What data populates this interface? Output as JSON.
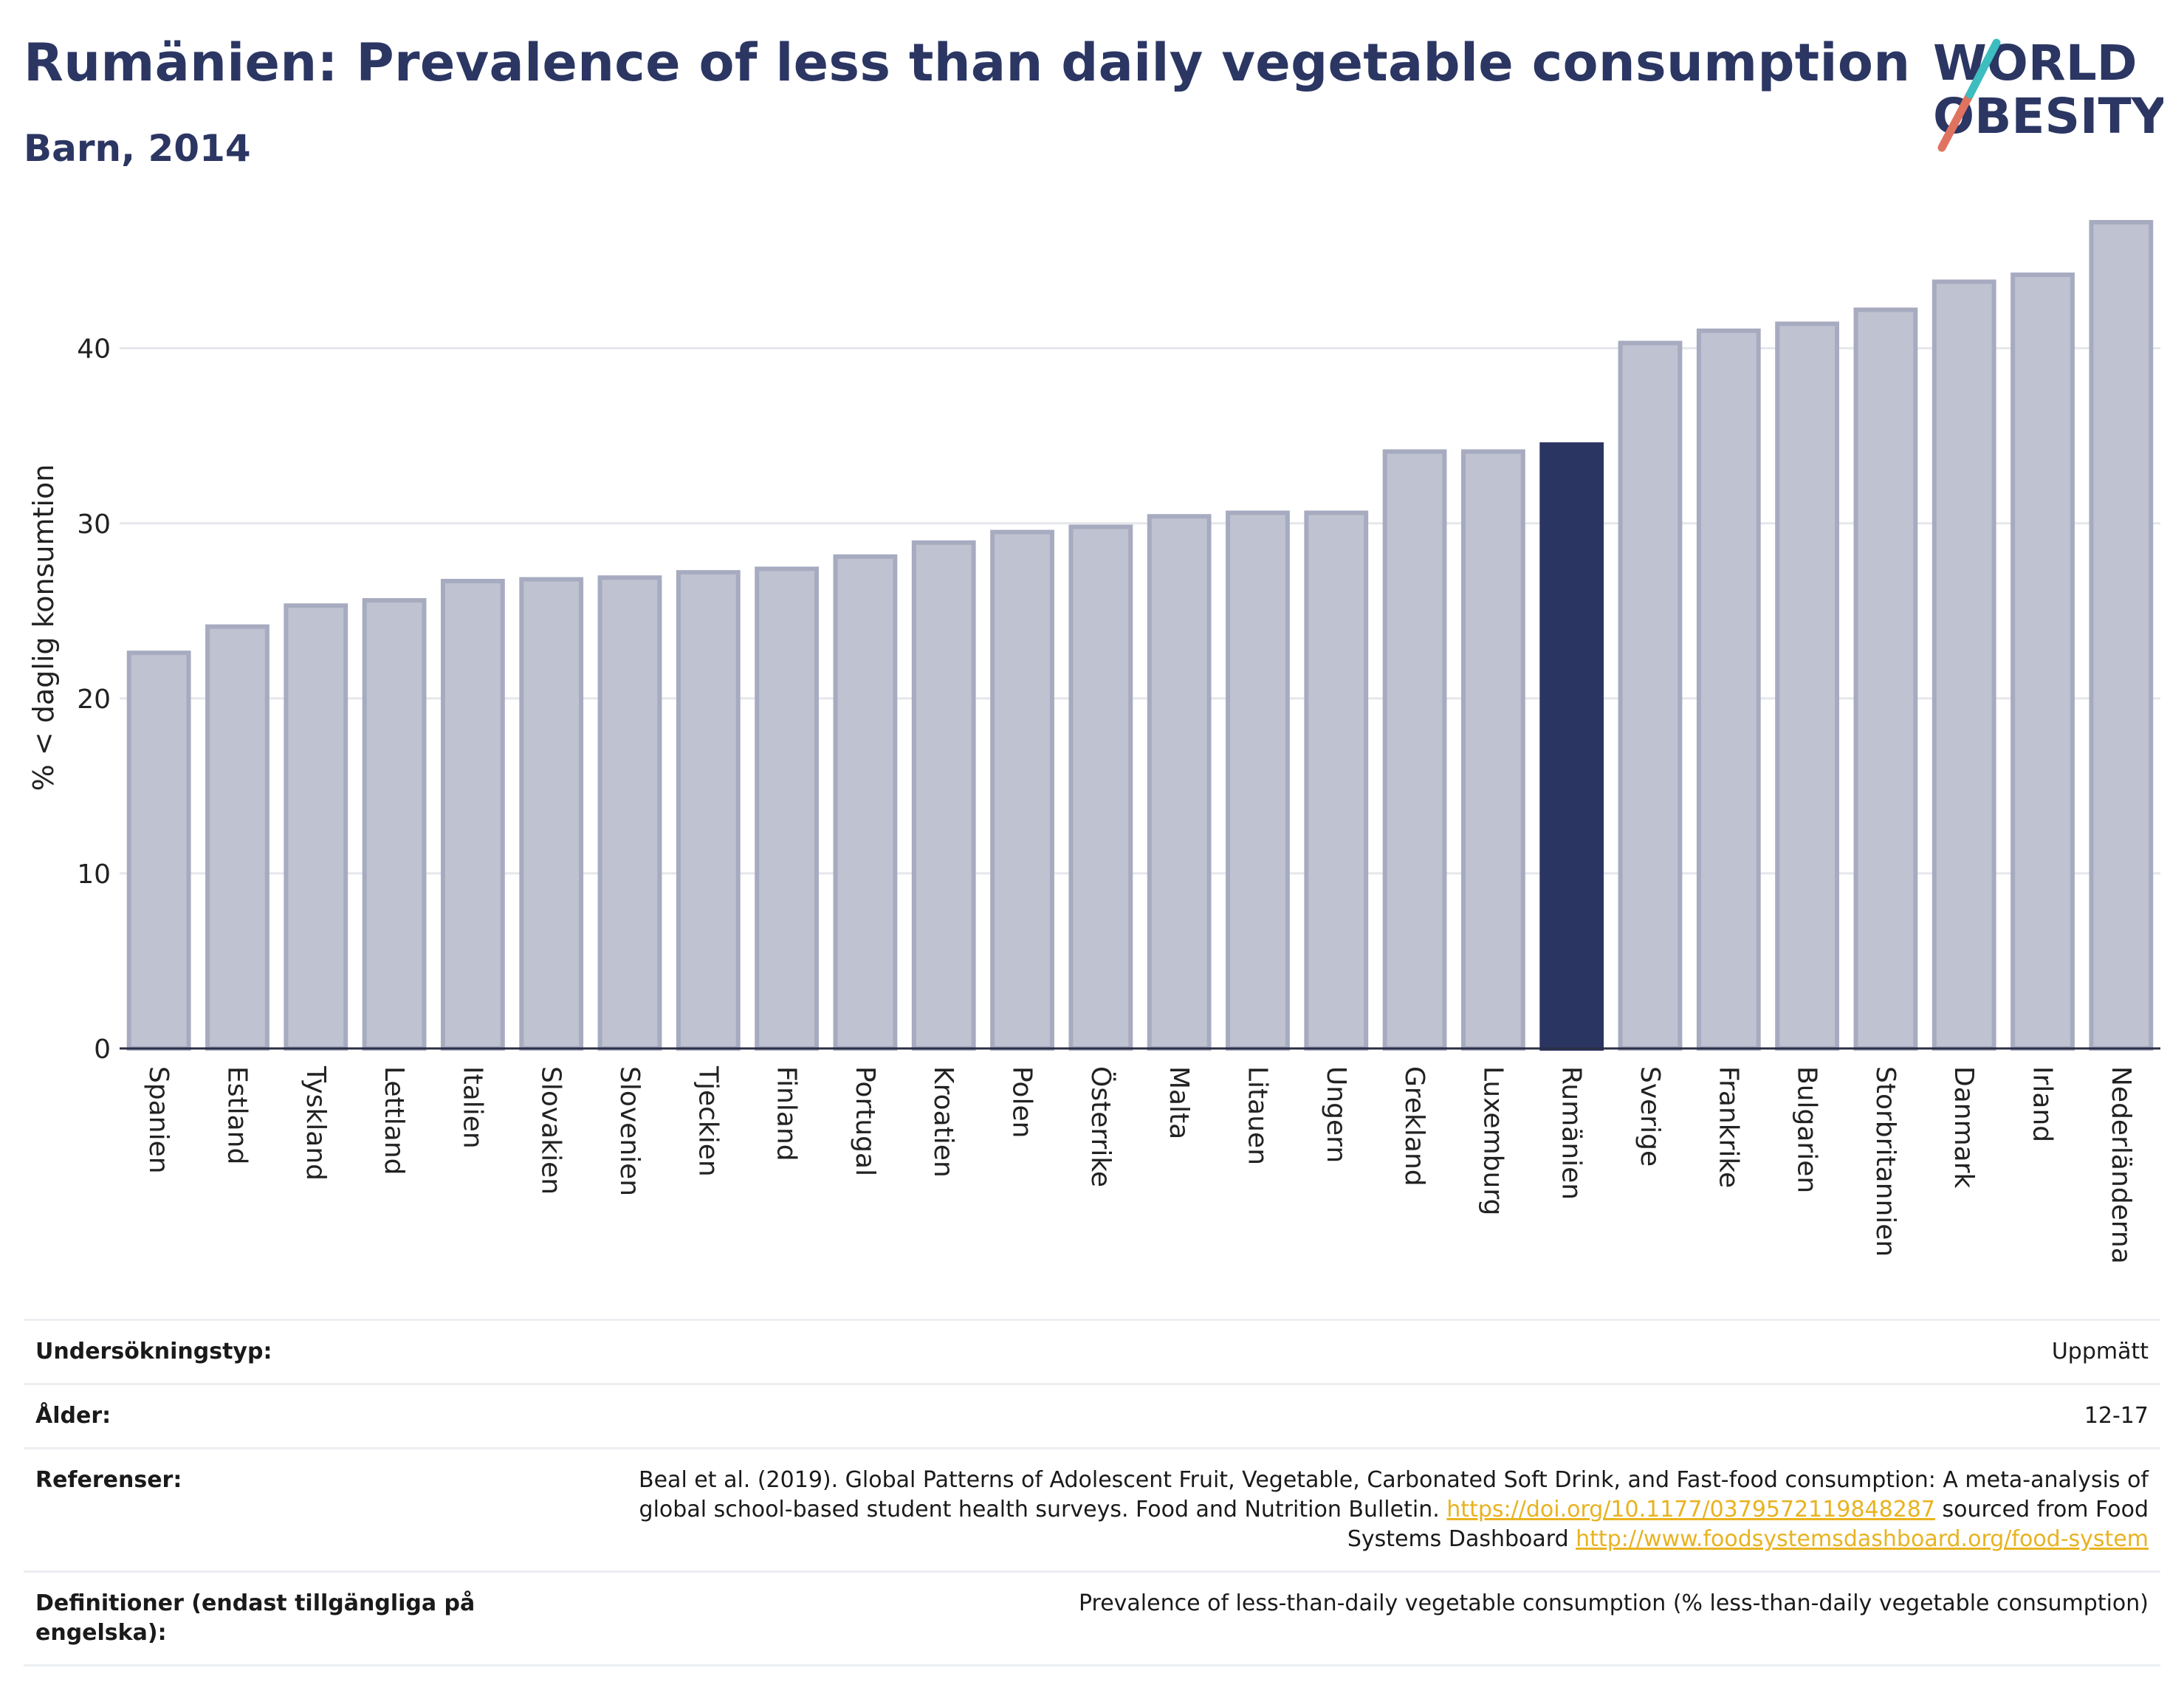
{
  "header": {
    "title": "Rumänien: Prevalence of less than daily vegetable consumption",
    "subtitle": "Barn, 2014"
  },
  "logo": {
    "line1": "WORLD",
    "line2": "OBESITY"
  },
  "colors": {
    "bar": "#bfc2d0",
    "bar_stroke": "#a7abc0",
    "highlight": "#2b3562",
    "text": "#2b3663"
  },
  "chart_data": {
    "type": "bar",
    "categories": [
      "Spanien",
      "Estland",
      "Tyskland",
      "Lettland",
      "Italien",
      "Slovakien",
      "Slovenien",
      "Tjeckien",
      "Finland",
      "Portugal",
      "Kroatien",
      "Polen",
      "Österrike",
      "Malta",
      "Litauen",
      "Ungern",
      "Grekland",
      "Luxemburg",
      "Rumänien",
      "Sverige",
      "Frankrike",
      "Bulgarien",
      "Storbritannien",
      "Danmark",
      "Irland",
      "Nederländerna"
    ],
    "values": [
      22.6,
      24.1,
      25.3,
      25.6,
      26.7,
      26.8,
      26.9,
      27.2,
      27.4,
      28.1,
      28.9,
      29.5,
      29.8,
      30.4,
      30.6,
      30.6,
      34.1,
      34.1,
      34.5,
      40.3,
      41.0,
      41.4,
      42.2,
      43.8,
      44.2,
      47.2
    ],
    "highlight": "Rumänien",
    "ylabel": "% < daglig konsumtion",
    "ylim": [
      0,
      48
    ],
    "yticks": [
      0,
      10,
      20,
      30,
      40
    ],
    "grid": true
  },
  "meta": [
    {
      "key": "Undersökningstyp:",
      "value": "Uppmätt"
    },
    {
      "key": "Ålder:",
      "value": "12-17"
    },
    {
      "key": "Referenser:",
      "ref_text1": "Beal et al. (2019). Global Patterns of Adolescent Fruit, Vegetable, Carbonated Soft Drink, and Fast-food consumption: A meta-analysis of global school-based student health surveys. Food and Nutrition Bulletin. ",
      "ref_link1": "https://doi.org/10.1177/0379572119848287",
      "ref_text2": " sourced from Food Systems Dashboard ",
      "ref_link2": "http://www.foodsystemsdashboard.org/food-system"
    },
    {
      "key": "Definitioner (endast tillgängliga på engelska):",
      "value": "Prevalence of less-than-daily vegetable consumption (% less-than-daily vegetable consumption)"
    }
  ]
}
